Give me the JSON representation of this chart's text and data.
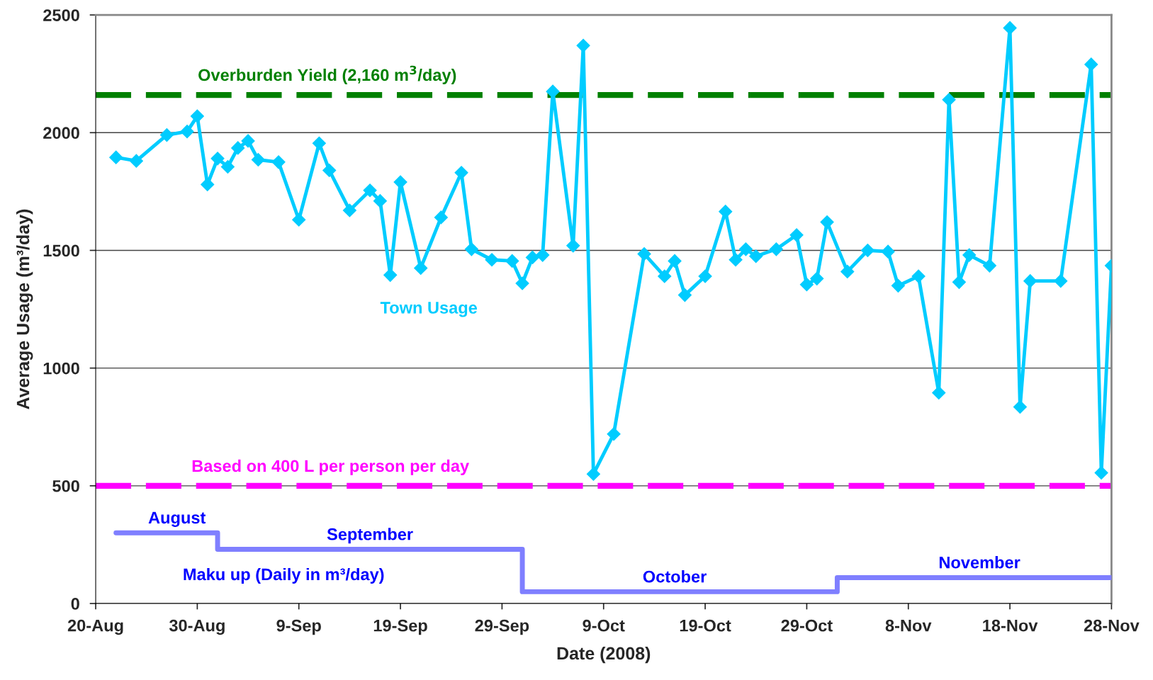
{
  "chart_data": {
    "type": "line",
    "xlabel": "Date (2008)",
    "ylabel": "Average Usage (m³/day)",
    "xlim": [
      "2008-08-20",
      "2008-11-28"
    ],
    "xticks": [
      {
        "value": "2008-08-20",
        "label": "20-Aug"
      },
      {
        "value": "2008-08-30",
        "label": "30-Aug"
      },
      {
        "value": "2008-09-09",
        "label": "9-Sep"
      },
      {
        "value": "2008-09-19",
        "label": "19-Sep"
      },
      {
        "value": "2008-09-29",
        "label": "29-Sep"
      },
      {
        "value": "2008-10-09",
        "label": "9-Oct"
      },
      {
        "value": "2008-10-19",
        "label": "19-Oct"
      },
      {
        "value": "2008-10-29",
        "label": "29-Oct"
      },
      {
        "value": "2008-11-08",
        "label": "8-Nov"
      },
      {
        "value": "2008-11-18",
        "label": "18-Nov"
      },
      {
        "value": "2008-11-28",
        "label": "28-Nov"
      }
    ],
    "ylim": [
      0,
      2500
    ],
    "yticks": [
      0,
      500,
      1000,
      1500,
      2000,
      2500
    ],
    "grid": "y",
    "line_style": "solid",
    "series": [
      {
        "name": "Town Usage",
        "color": "#00ccff",
        "marker": "diamond",
        "x": [
          "2008-08-22",
          "2008-08-24",
          "2008-08-27",
          "2008-08-29",
          "2008-08-30",
          "2008-08-31",
          "2008-09-01",
          "2008-09-02",
          "2008-09-03",
          "2008-09-04",
          "2008-09-05",
          "2008-09-07",
          "2008-09-09",
          "2008-09-11",
          "2008-09-12",
          "2008-09-14",
          "2008-09-16",
          "2008-09-17",
          "2008-09-18",
          "2008-09-19",
          "2008-09-21",
          "2008-09-23",
          "2008-09-25",
          "2008-09-26",
          "2008-09-28",
          "2008-09-30",
          "2008-10-01",
          "2008-10-02",
          "2008-10-03",
          "2008-10-04",
          "2008-10-06",
          "2008-10-07",
          "2008-10-08",
          "2008-10-10",
          "2008-10-13",
          "2008-10-15",
          "2008-10-16",
          "2008-10-17",
          "2008-10-19",
          "2008-10-21",
          "2008-10-22",
          "2008-10-23",
          "2008-10-24",
          "2008-10-26",
          "2008-10-28",
          "2008-10-29",
          "2008-10-30",
          "2008-10-31",
          "2008-11-02",
          "2008-11-04",
          "2008-11-06",
          "2008-11-07",
          "2008-11-09",
          "2008-11-11",
          "2008-11-12",
          "2008-11-13",
          "2008-11-14",
          "2008-11-16",
          "2008-11-18",
          "2008-11-19",
          "2008-11-20",
          "2008-11-23",
          "2008-11-26",
          "2008-11-27",
          "2008-11-28"
        ],
        "values": [
          1895,
          1880,
          1990,
          2005,
          2070,
          1780,
          1890,
          1855,
          1935,
          1965,
          1885,
          1875,
          1630,
          1955,
          1840,
          1670,
          1755,
          1710,
          1395,
          1790,
          1425,
          1640,
          1830,
          1505,
          1460,
          1455,
          1360,
          1470,
          1480,
          2175,
          1520,
          2370,
          550,
          720,
          1485,
          1390,
          1455,
          1310,
          1390,
          1665,
          1460,
          1505,
          1475,
          1505,
          1565,
          1355,
          1380,
          1620,
          1410,
          1500,
          1495,
          1350,
          1390,
          895,
          2140,
          1365,
          1480,
          1435,
          2445,
          835,
          1370,
          1370,
          2290,
          555,
          1435
        ]
      },
      {
        "name": "Maku up (Daily in m³/day)",
        "type": "step",
        "color": "#7f7fff",
        "marker": "none",
        "x": [
          "2008-08-22",
          "2008-09-01",
          "2008-10-01",
          "2008-11-01",
          "2008-11-28"
        ],
        "values": [
          300,
          230,
          50,
          110,
          110
        ]
      }
    ],
    "ref_lines": [
      {
        "axis": "y",
        "value": 2160,
        "label": "Overburden Yield (2,160 m$^{3}$/day)",
        "color": "#008000",
        "line_style": "dashed"
      },
      {
        "axis": "y",
        "value": 500,
        "label": "Based on 400 L per person per day",
        "color": "#ff00ff",
        "line_style": "dashed"
      }
    ],
    "annotations": [
      {
        "text": "August",
        "x": "2008-08-28",
        "y": 300
      },
      {
        "text": "September",
        "x": "2008-09-16",
        "y": 230
      },
      {
        "text": "October",
        "x": "2008-10-16",
        "y": 50
      },
      {
        "text": "November",
        "x": "2008-11-15",
        "y": 110
      }
    ],
    "legend": false
  }
}
